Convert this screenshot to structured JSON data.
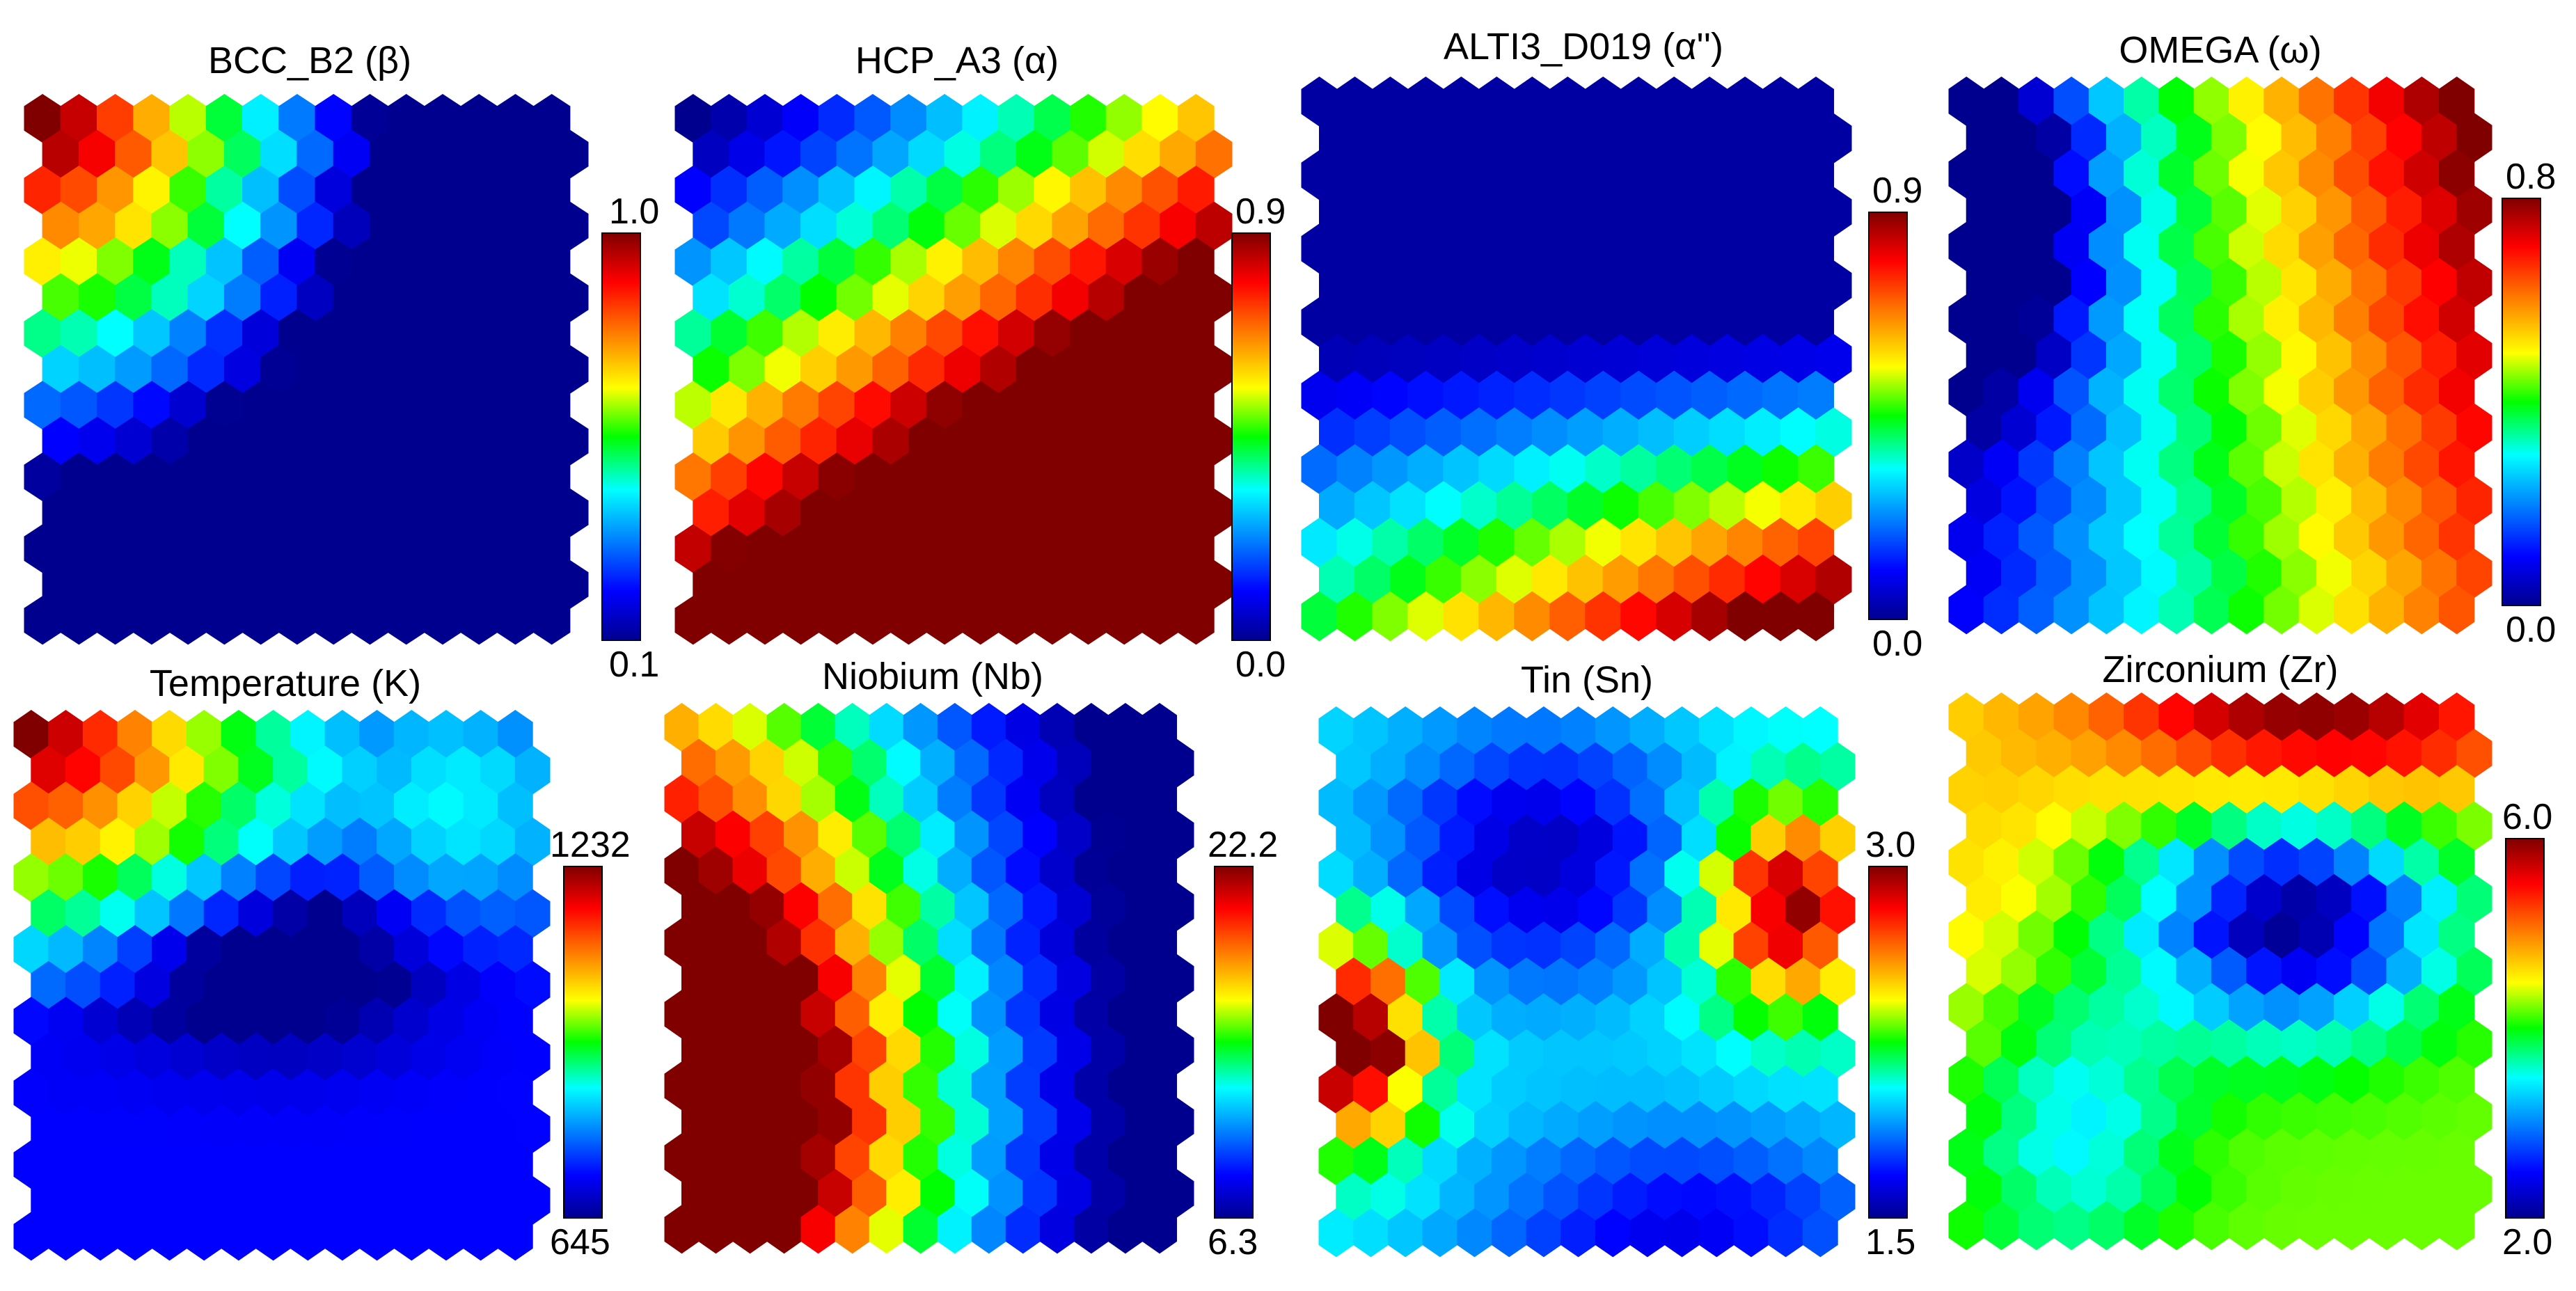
{
  "chart_data": [
    {
      "type": "heatmap",
      "title": "BCC_B2 (β)",
      "colorbar": {
        "max": "1.0",
        "min": "0.1"
      },
      "grid": {
        "cols": 15,
        "rows": 15
      },
      "pattern": "corner",
      "direction": "top-left to bottom-right",
      "note_values": "high at top-left corner, low at bottom-right"
    },
    {
      "type": "heatmap",
      "title": "HCP_A3 (α)",
      "colorbar": {
        "max": "0.9",
        "min": "0.0"
      },
      "grid": {
        "cols": 15,
        "rows": 15
      },
      "pattern": "corner",
      "direction": "bottom-right to top-left"
    },
    {
      "type": "heatmap",
      "title": "ALTI3_D019 (α'')",
      "colorbar": {
        "max": "0.9",
        "min": "0.0"
      },
      "grid": {
        "cols": 15,
        "rows": 15
      },
      "pattern": "bottom-band"
    },
    {
      "type": "heatmap",
      "title": "OMEGA (ω)",
      "colorbar": {
        "max": "0.8",
        "min": "0.0"
      },
      "grid": {
        "cols": 15,
        "rows": 15
      },
      "pattern": "right-band"
    },
    {
      "type": "heatmap",
      "title": "Temperature (K)",
      "colorbar": {
        "max": "1232",
        "min": "645"
      },
      "grid": {
        "cols": 15,
        "rows": 15
      },
      "pattern": "temperature"
    },
    {
      "type": "heatmap",
      "title": "Niobium (Nb)",
      "colorbar": {
        "max": "22.2",
        "min": "6.3"
      },
      "grid": {
        "cols": 15,
        "rows": 15
      },
      "pattern": "niobium"
    },
    {
      "type": "heatmap",
      "title": "Tin (Sn)",
      "colorbar": {
        "max": "3.0",
        "min": "1.5"
      },
      "grid": {
        "cols": 15,
        "rows": 15
      },
      "pattern": "tin"
    },
    {
      "type": "heatmap",
      "title": "Zirconium (Zr)",
      "colorbar": {
        "max": "6.0",
        "min": "2.0"
      },
      "grid": {
        "cols": 15,
        "rows": 15
      },
      "pattern": "zirconium"
    }
  ],
  "colormap": [
    "#00008f",
    "#0000ff",
    "#00ffff",
    "#00ff00",
    "#ffff00",
    "#ff8000",
    "#ff0000",
    "#800000"
  ]
}
